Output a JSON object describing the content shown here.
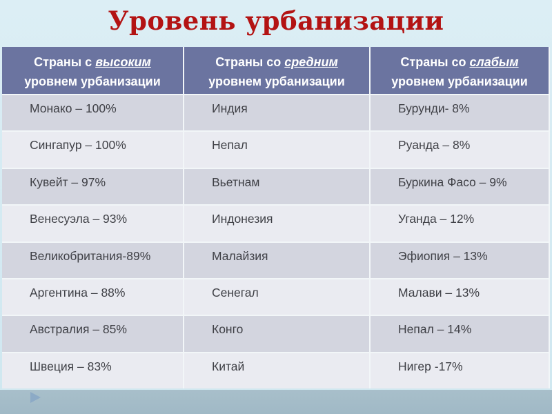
{
  "slide": {
    "title": "Уровень урбанизации"
  },
  "colors": {
    "background_top": "#d4eaf2",
    "bottom_band": "#a3bbc8",
    "title_text": "#b31313",
    "header_bg": "#6b74a0",
    "header_text": "#ffffff",
    "row_odd_bg": "#d3d5df",
    "row_even_bg": "#eaebf1",
    "cell_text": "#3f4046",
    "arrow": "#8caac6"
  },
  "table": {
    "columns": [
      {
        "header": {
          "prefix": "Страны с ",
          "emphasis": "высоким",
          "line2": "уровнем урбанизации"
        },
        "rows": [
          "Монако – 100%",
          "Сингапур – 100%",
          "Кувейт – 97%",
          "Венесуэла – 93%",
          "Великобритания-89%",
          "Аргентина – 88%",
          "Австралия – 85%",
          "Швеция – 83%"
        ]
      },
      {
        "header": {
          "prefix": "Страны со ",
          "emphasis": "средним",
          "line2": "уровнем урбанизации"
        },
        "rows": [
          "Индия",
          "Непал",
          "Вьетнам",
          "Индонезия",
          "Малайзия",
          "Сенегал",
          "Конго",
          "Китай"
        ]
      },
      {
        "header": {
          "prefix": "Страны со ",
          "emphasis": "слабым",
          "line2": "уровнем урбанизации"
        },
        "rows": [
          "Бурунди- 8%",
          "Руанда – 8%",
          "Буркина Фасо – 9%",
          "Уганда – 12%",
          "Эфиопия – 13%",
          "Малави – 13%",
          "Непал – 14%",
          "Нигер -17%"
        ]
      }
    ]
  }
}
